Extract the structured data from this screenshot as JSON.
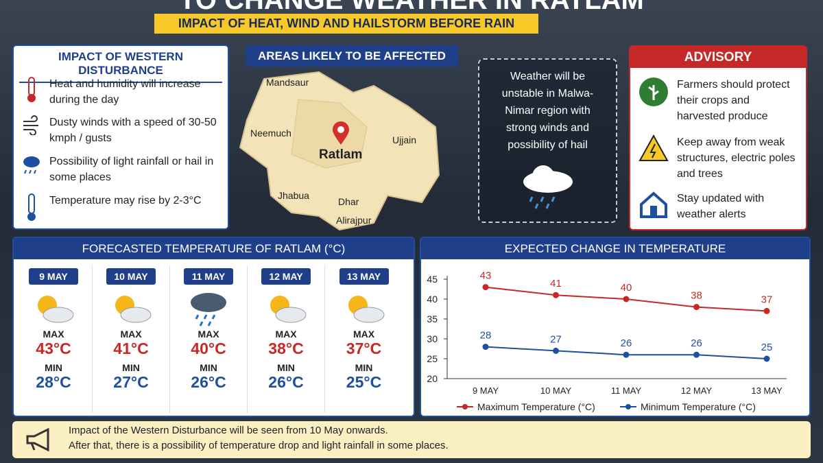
{
  "header": {
    "title": "TO CHANGE WEATHER IN RATLAM",
    "subtitle": "IMPACT OF HEAT, WIND AND HAILSTORM BEFORE RAIN"
  },
  "western_disturbance": {
    "title": "IMPACT OF WESTERN DISTURBANCE",
    "items": [
      "Heat and humidity will increase during the day",
      "Dusty winds with a speed of 30-50 kmph / gusts",
      "Possibility of light rainfall or hail in some places",
      "Temperature may rise by 2-3°C"
    ]
  },
  "map": {
    "title": "AREAS LIKELY TO BE AFFECTED",
    "places": [
      "Mandsaur",
      "Neemuch",
      "Ratlam",
      "Ujjain",
      "Jhabua",
      "Dhar",
      "Alirajpur"
    ]
  },
  "callout": "Weather will be unstable in Malwa-Nimar region with strong winds and possibility of hail",
  "advisory": {
    "title": "ADVISORY",
    "items": [
      "Farmers should protect their crops and harvested produce",
      "Keep away from weak structures, electric poles and trees",
      "Stay updated with weather alerts"
    ]
  },
  "forecast": {
    "title": "FORECASTED TEMPERATURE OF RATLAM (°C)",
    "days": [
      {
        "date": "9 MAY",
        "max_label": "MAX",
        "max": "43°C",
        "min_label": "MIN",
        "min": "28°C"
      },
      {
        "date": "10 MAY",
        "max_label": "MAX",
        "max": "41°C",
        "min_label": "MIN",
        "min": "27°C"
      },
      {
        "date": "11 MAY",
        "max_label": "MAX",
        "max": "40°C",
        "min_label": "MIN",
        "min": "26°C"
      },
      {
        "date": "12 MAY",
        "max_label": "MAX",
        "max": "38°C",
        "min_label": "MIN",
        "min": "26°C"
      },
      {
        "date": "13 MAY",
        "max_label": "MAX",
        "max": "37°C",
        "min_label": "MIN",
        "min": "25°C"
      }
    ]
  },
  "chart": {
    "type": "line",
    "title": "EXPECTED CHANGE IN TEMPERATURE",
    "categories": [
      "9 MAY",
      "10 MAY",
      "11 MAY",
      "12 MAY",
      "13 MAY"
    ],
    "series": [
      {
        "name": "Maximum Temperature (°C)",
        "color": "#c62828",
        "values": [
          43,
          41,
          40,
          38,
          37
        ]
      },
      {
        "name": "Minimum Temperature (°C)",
        "color": "#1f4fa0",
        "values": [
          28,
          27,
          26,
          26,
          25
        ]
      }
    ],
    "ylim": [
      20,
      45
    ],
    "yticks": [
      20,
      25,
      30,
      35,
      40,
      45
    ]
  },
  "note": [
    "Impact of the Western Disturbance will be seen from 10 May onwards.",
    "After that, there is a possibility of temperature drop and light rainfall in some places."
  ]
}
